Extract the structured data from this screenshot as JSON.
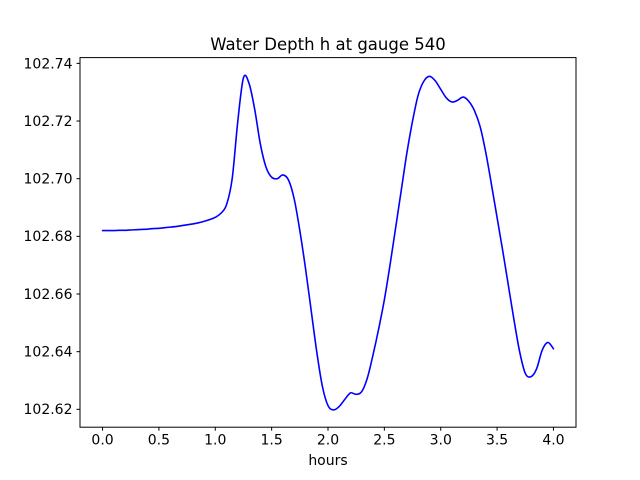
{
  "chart_data": {
    "type": "line",
    "title": "Water Depth h at gauge 540",
    "xlabel": "hours",
    "ylabel": "",
    "grid": false,
    "legend": null,
    "background_color": "#ffffff",
    "axis_color": "#000000",
    "line_color": "#0000ff",
    "line_width": 1.6,
    "xlim": [
      -0.2,
      4.2
    ],
    "ylim": [
      102.6138,
      102.742
    ],
    "x_ticks": [
      0.0,
      0.5,
      1.0,
      1.5,
      2.0,
      2.5,
      3.0,
      3.5,
      4.0
    ],
    "x_tick_labels": [
      "0.0",
      "0.5",
      "1.0",
      "1.5",
      "2.0",
      "2.5",
      "3.0",
      "3.5",
      "4.0"
    ],
    "y_ticks": [
      102.62,
      102.64,
      102.66,
      102.68,
      102.7,
      102.72,
      102.74
    ],
    "y_tick_labels": [
      "102.62",
      "102.64",
      "102.66",
      "102.68",
      "102.70",
      "102.72",
      "102.74"
    ],
    "series": [
      {
        "name": "h",
        "x": [
          0.0,
          0.05,
          0.1,
          0.15,
          0.2,
          0.25,
          0.3,
          0.35,
          0.4,
          0.45,
          0.5,
          0.55,
          0.6,
          0.65,
          0.7,
          0.75,
          0.8,
          0.85,
          0.9,
          0.95,
          1.0,
          1.05,
          1.1,
          1.15,
          1.2,
          1.25,
          1.3,
          1.35,
          1.4,
          1.45,
          1.5,
          1.55,
          1.6,
          1.65,
          1.7,
          1.75,
          1.8,
          1.85,
          1.9,
          1.95,
          2.0,
          2.05,
          2.1,
          2.15,
          2.2,
          2.25,
          2.3,
          2.35,
          2.4,
          2.45,
          2.5,
          2.55,
          2.6,
          2.65,
          2.7,
          2.75,
          2.8,
          2.85,
          2.9,
          2.95,
          3.0,
          3.05,
          3.1,
          3.15,
          3.2,
          3.25,
          3.3,
          3.35,
          3.4,
          3.45,
          3.5,
          3.55,
          3.6,
          3.65,
          3.7,
          3.75,
          3.8,
          3.85,
          3.9,
          3.95,
          4.0
        ],
        "y": [
          102.682,
          102.682,
          102.682,
          102.6821,
          102.6821,
          102.6822,
          102.6823,
          102.6824,
          102.6825,
          102.6827,
          102.6828,
          102.683,
          102.6832,
          102.6834,
          102.6837,
          102.684,
          102.6843,
          102.6847,
          102.6852,
          102.6858,
          102.6866,
          102.688,
          102.691,
          102.7,
          102.72,
          102.735,
          102.733,
          102.724,
          102.712,
          102.704,
          102.7005,
          102.7,
          102.7013,
          102.6995,
          102.693,
          102.682,
          102.669,
          102.6545,
          102.64,
          102.628,
          102.6213,
          102.6198,
          102.621,
          102.6235,
          102.6257,
          102.6252,
          102.6262,
          102.631,
          102.639,
          102.648,
          102.658,
          102.67,
          102.683,
          102.696,
          102.709,
          102.72,
          102.729,
          102.7338,
          102.7355,
          102.734,
          102.731,
          102.728,
          102.7266,
          102.7272,
          102.7283,
          102.7268,
          102.7235,
          102.718,
          102.709,
          102.698,
          102.6865,
          102.675,
          102.663,
          102.651,
          102.64,
          102.6325,
          102.6313,
          102.634,
          102.6405,
          102.6432,
          102.641
        ]
      }
    ]
  }
}
